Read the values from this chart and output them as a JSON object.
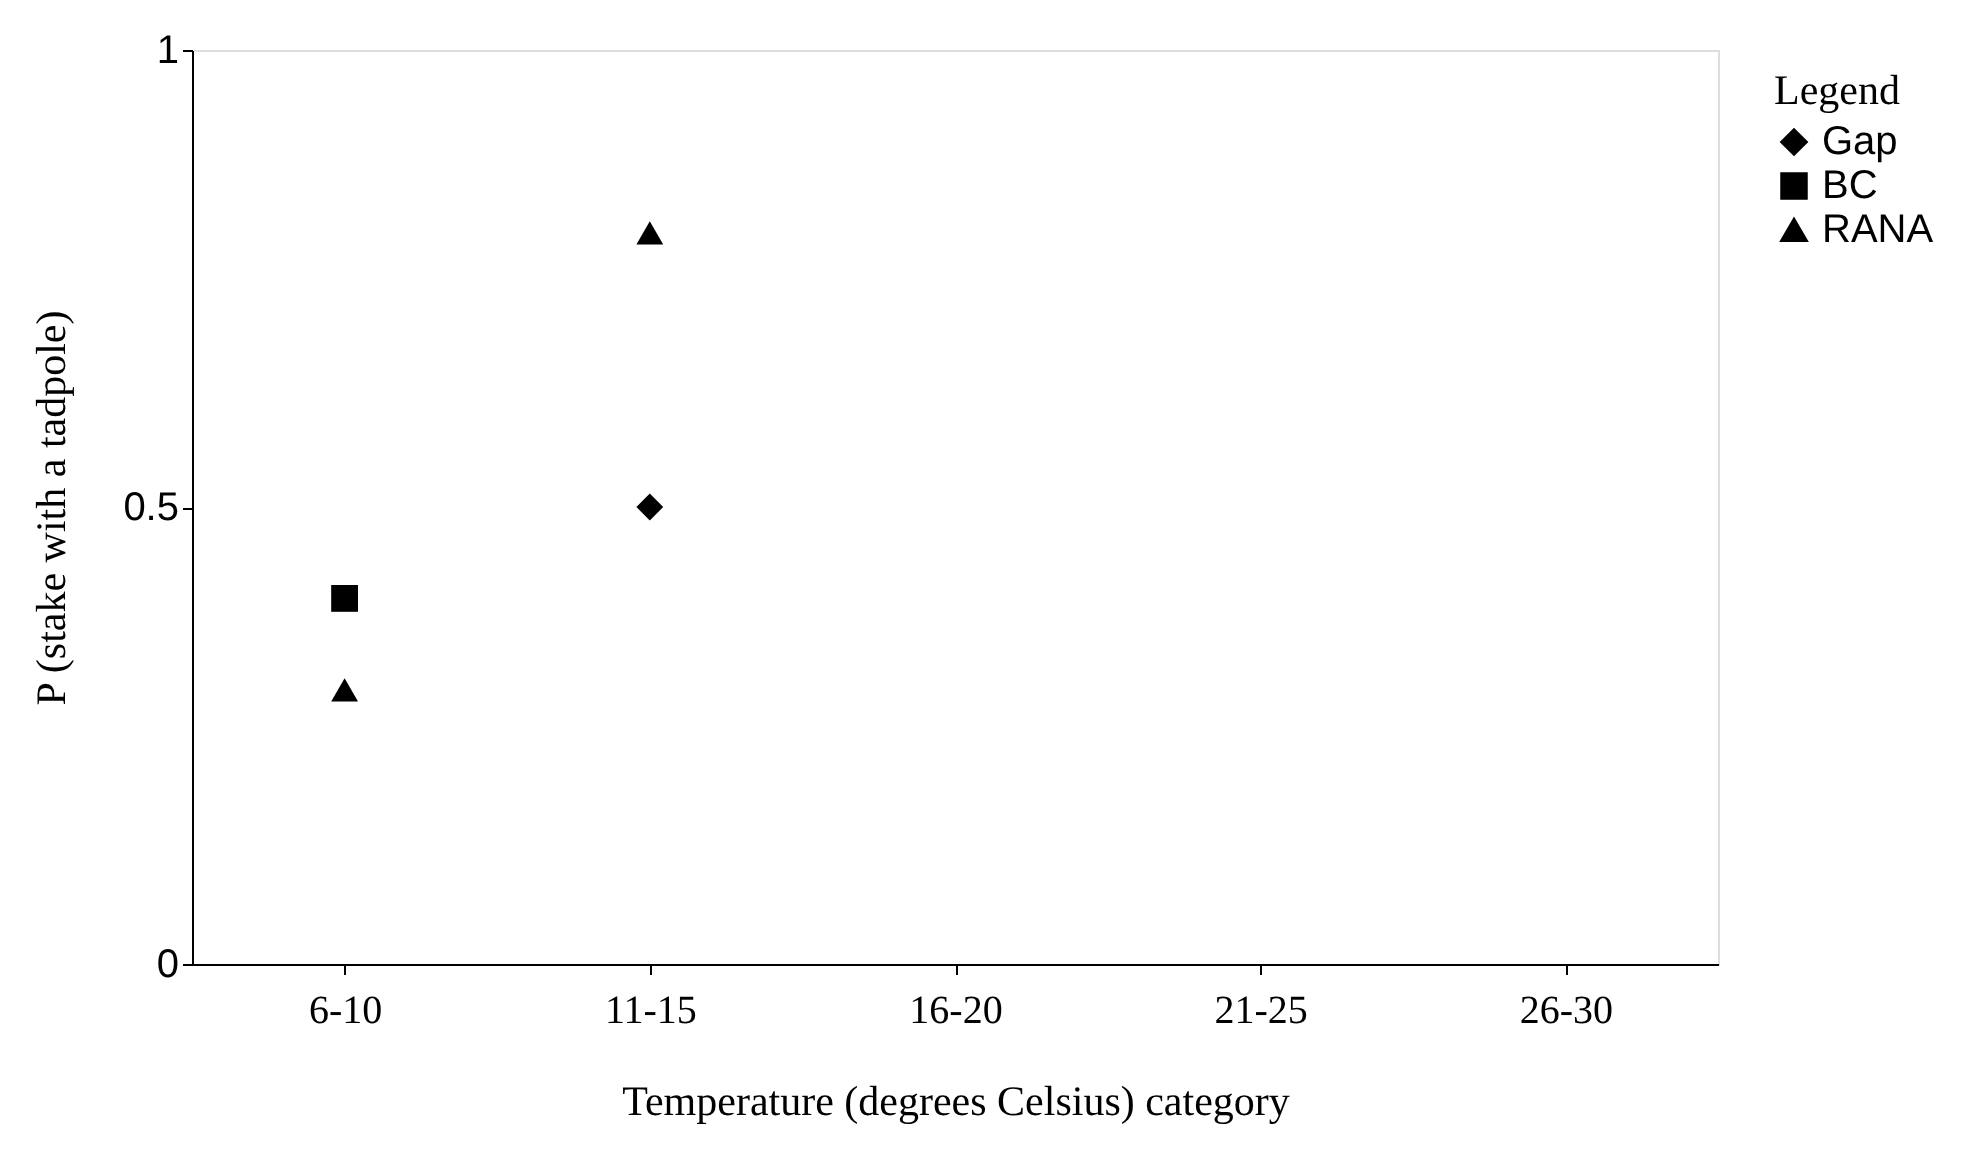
{
  "chart_data": {
    "type": "scatter",
    "xlabel": "Temperature (degrees Celsius) category",
    "ylabel": "P (stake with a tadpole)",
    "legend_title": "Legend",
    "legend": "right",
    "grid": false,
    "categories": [
      "6-10",
      "11-15",
      "16-20",
      "21-25",
      "26-30"
    ],
    "ylim": [
      0,
      1
    ],
    "yticks": [
      0,
      0.5,
      1
    ],
    "series": [
      {
        "name": "Gap",
        "color": "#000000",
        "marker": "diamond",
        "values": [
          null,
          0.5,
          null,
          null,
          null
        ]
      },
      {
        "name": "BC",
        "color": "#000000",
        "marker": "square",
        "values": [
          0.4,
          null,
          null,
          null,
          null
        ]
      },
      {
        "name": "RANA",
        "color": "#000000",
        "marker": "triangle",
        "values": [
          0.3,
          0.8,
          null,
          null,
          null
        ]
      }
    ]
  }
}
